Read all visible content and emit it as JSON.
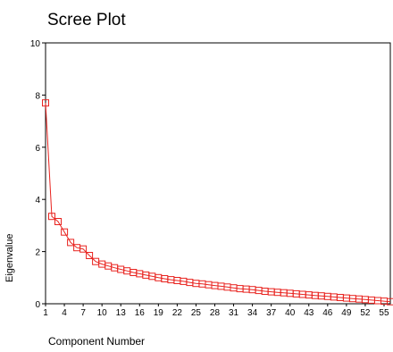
{
  "chart_data": {
    "type": "line",
    "title": "Scree Plot",
    "xlabel": "Component Number",
    "ylabel": "Eigenvalue",
    "ylim": [
      0,
      10
    ],
    "yticks": [
      0,
      2,
      4,
      6,
      8,
      10
    ],
    "xticks": [
      1,
      4,
      7,
      10,
      13,
      16,
      19,
      22,
      25,
      28,
      31,
      34,
      37,
      40,
      43,
      46,
      49,
      52,
      55
    ],
    "grid": false,
    "marker": "square",
    "colors": {
      "series": "#e8231f",
      "axis": "#000000"
    },
    "x": [
      1,
      2,
      3,
      4,
      5,
      6,
      7,
      8,
      9,
      10,
      11,
      12,
      13,
      14,
      15,
      16,
      17,
      18,
      19,
      20,
      21,
      22,
      23,
      24,
      25,
      26,
      27,
      28,
      29,
      30,
      31,
      32,
      33,
      34,
      35,
      36,
      37,
      38,
      39,
      40,
      41,
      42,
      43,
      44,
      45,
      46,
      47,
      48,
      49,
      50,
      51,
      52,
      53,
      54,
      55,
      56
    ],
    "y": [
      7.7,
      3.35,
      3.15,
      2.75,
      2.35,
      2.15,
      2.1,
      1.85,
      1.62,
      1.52,
      1.45,
      1.38,
      1.32,
      1.26,
      1.2,
      1.15,
      1.1,
      1.05,
      1.0,
      0.96,
      0.92,
      0.89,
      0.86,
      0.82,
      0.78,
      0.76,
      0.73,
      0.7,
      0.67,
      0.64,
      0.61,
      0.58,
      0.56,
      0.54,
      0.51,
      0.48,
      0.46,
      0.44,
      0.42,
      0.4,
      0.38,
      0.36,
      0.34,
      0.32,
      0.3,
      0.28,
      0.26,
      0.24,
      0.22,
      0.2,
      0.18,
      0.16,
      0.14,
      0.12,
      0.1,
      0.08
    ]
  }
}
